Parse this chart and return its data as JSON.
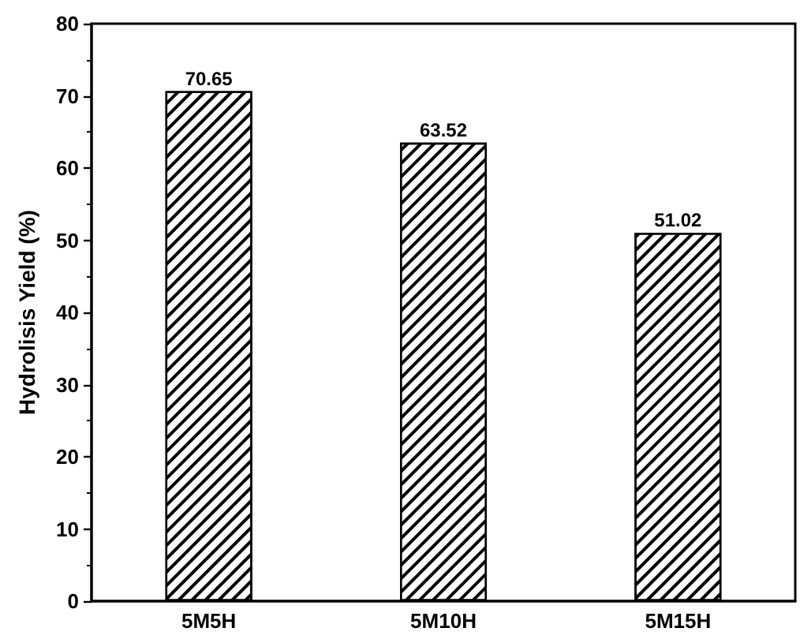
{
  "chart_data": {
    "type": "bar",
    "ylabel": "Hydrolisis Yield (%)",
    "categories": [
      "5M5H",
      "5M10H",
      "5M15H"
    ],
    "values": [
      70.65,
      63.52,
      51.02
    ],
    "color": "#000000",
    "ylim": [
      0,
      80
    ],
    "yticks": [
      0,
      10,
      20,
      30,
      40,
      50,
      60,
      70,
      80
    ],
    "data_labels": true
  }
}
